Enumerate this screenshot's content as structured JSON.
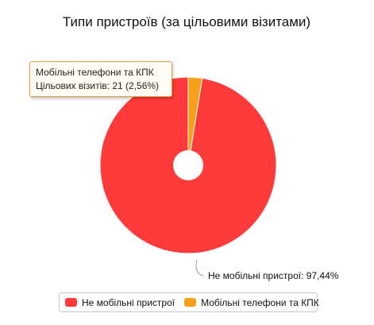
{
  "chart_data": {
    "type": "pie",
    "title": "Типи пристроїв (за цільовими візитами)",
    "donut": true,
    "slices": [
      {
        "name": "Не мобільні пристрої",
        "percent": 97.44,
        "color": "#ff3a3a"
      },
      {
        "name": "Мобільні телефони та КПК",
        "value": 21,
        "percent": 2.56,
        "color": "#f7a11a"
      }
    ],
    "data_label": "Не мобільні пристрої: 97,44%",
    "tooltip": {
      "series": "Мобільні телефони та КПК",
      "text": "Цільових візитів: 21 (2,56%)"
    },
    "legend": {
      "position": "bottom",
      "items": [
        "Не мобільні пристрої",
        "Мобільні телефони та КПК"
      ]
    }
  }
}
